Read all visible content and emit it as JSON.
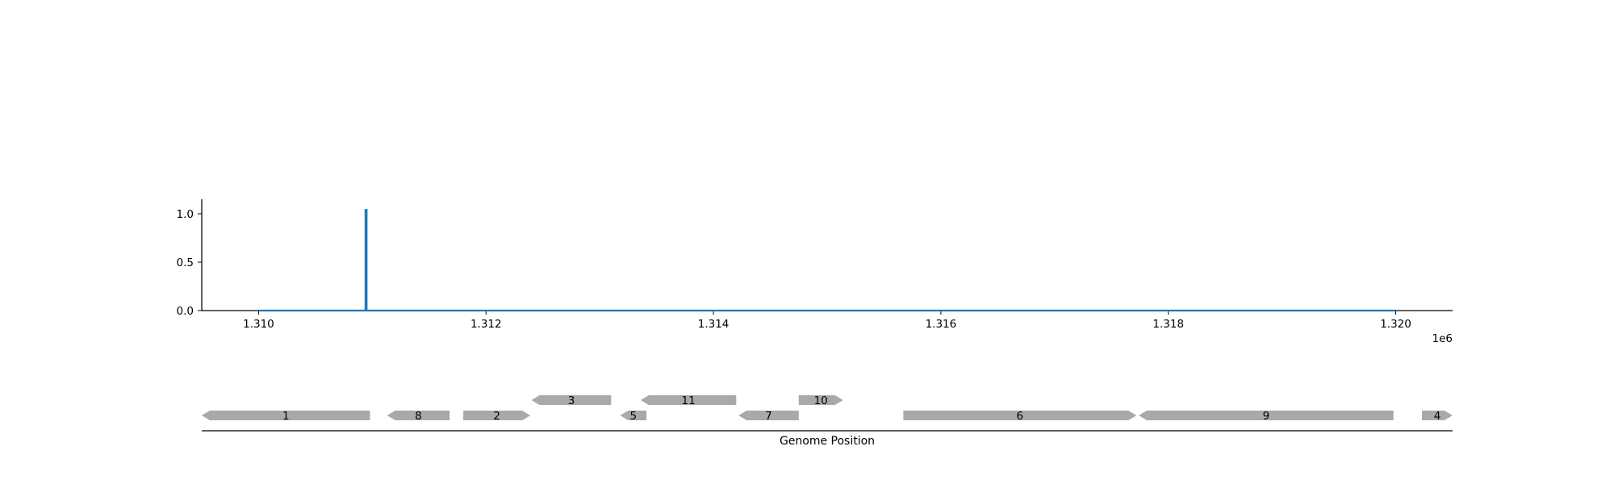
{
  "chart_data": [
    {
      "type": "line",
      "xlim": [
        1309500,
        1320500
      ],
      "ylim": [
        0,
        1.15
      ],
      "x_ticks": [
        1310000,
        1312000,
        1314000,
        1316000,
        1318000,
        1320000
      ],
      "x_tick_labels": [
        "1.310",
        "1.312",
        "1.314",
        "1.316",
        "1.318",
        "1.320"
      ],
      "x_offset_label": "1e6",
      "y_ticks": [
        0.0,
        0.5,
        1.0
      ],
      "y_tick_labels": [
        "0.0",
        "0.5",
        "1.0"
      ],
      "grid": false,
      "series": [
        {
          "color": "#1f77b4",
          "x": [
            1310000,
            1310940,
            1310940,
            1310950,
            1310950,
            1320000
          ],
          "y": [
            0,
            0,
            1.04,
            1.04,
            0,
            0
          ]
        }
      ]
    },
    {
      "type": "gene-track",
      "xlim": [
        1309500,
        1320500
      ],
      "xlabel": "Genome Position",
      "feature_color": "#a9a9a9",
      "features": [
        {
          "label": "1",
          "start": 1309500,
          "end": 1310980,
          "strand": "-",
          "row": 0
        },
        {
          "label": "8",
          "start": 1311130,
          "end": 1311680,
          "strand": "-",
          "row": 0
        },
        {
          "label": "2",
          "start": 1311800,
          "end": 1312390,
          "strand": "+",
          "row": 0
        },
        {
          "label": "3",
          "start": 1312400,
          "end": 1313100,
          "strand": "-",
          "row": 1
        },
        {
          "label": "5",
          "start": 1313180,
          "end": 1313410,
          "strand": "-",
          "row": 0
        },
        {
          "label": "11",
          "start": 1313360,
          "end": 1314200,
          "strand": "-",
          "row": 1
        },
        {
          "label": "7",
          "start": 1314220,
          "end": 1314750,
          "strand": "-",
          "row": 0
        },
        {
          "label": "10",
          "start": 1314750,
          "end": 1315140,
          "strand": "+",
          "row": 1
        },
        {
          "label": "6",
          "start": 1315670,
          "end": 1317720,
          "strand": "+",
          "row": 0
        },
        {
          "label": "9",
          "start": 1317740,
          "end": 1319980,
          "strand": "-",
          "row": 0
        },
        {
          "label": "4",
          "start": 1320230,
          "end": 1320500,
          "strand": "+",
          "row": 0
        }
      ]
    }
  ]
}
